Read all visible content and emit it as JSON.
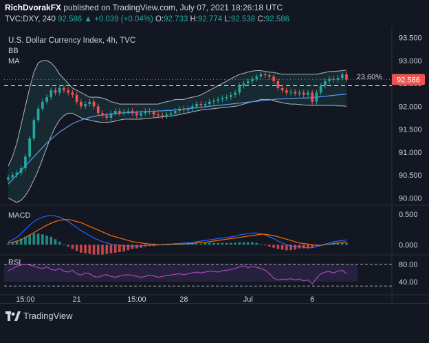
{
  "header": {
    "author": "RichDvorakFX",
    "published_text": "published on TradingView.com, July 07, 2021 18:26:18 UTC",
    "symbol": "TVC:DXY, 240",
    "last": "92.586",
    "change": "▲ +0.039 (+0.04%)",
    "ohlc": {
      "O": "92.733",
      "H": "92.774",
      "L": "92.538",
      "C": "92.586"
    }
  },
  "chart": {
    "title": "U.S. Dollar Currency Index, 4h, TVC",
    "bb_label": "BB",
    "ma_label": "MA",
    "macd_label": "MACD",
    "rsi_label": "RSI",
    "fib_label": "23.60%",
    "price_tag": "92.586",
    "colors": {
      "up": "#26a69a",
      "down": "#ef5350",
      "bb": "#b2b5be",
      "ma": "#5b9cf6",
      "macd": "#2962ff",
      "signal": "#ff6d00",
      "rsi": "#ab47bc"
    }
  },
  "chart_data": {
    "type": "candlestick",
    "x_ticks": [
      "15:00",
      "21",
      "15:00",
      "28",
      "Jul",
      "6"
    ],
    "price_ticks": [
      "93.500",
      "93.000",
      "92.500",
      "92.000",
      "91.500",
      "91.000",
      "90.500",
      "90.000"
    ],
    "macd_ticks": [
      "0.500",
      "0.000"
    ],
    "rsi_ticks": [
      "80.00",
      "40.00"
    ],
    "ylim": [
      89.9,
      93.6
    ],
    "fib_23_6_level": 92.45,
    "last_price": 92.586,
    "close": [
      90.45,
      90.5,
      90.55,
      90.65,
      90.9,
      91.3,
      91.7,
      91.95,
      92.1,
      92.2,
      92.35,
      92.3,
      92.4,
      92.35,
      92.3,
      92.25,
      92.1,
      92.0,
      92.05,
      92.1,
      92.0,
      91.85,
      91.8,
      91.75,
      91.85,
      91.9,
      91.85,
      91.88,
      91.9,
      91.85,
      91.8,
      91.85,
      91.9,
      91.88,
      91.82,
      91.8,
      91.78,
      91.82,
      91.85,
      91.9,
      91.95,
      91.92,
      91.95,
      92.0,
      92.05,
      92.02,
      92.05,
      92.1,
      92.12,
      92.15,
      92.18,
      92.2,
      92.25,
      92.3,
      92.45,
      92.5,
      92.55,
      92.6,
      92.65,
      92.7,
      92.68,
      92.65,
      92.55,
      92.4,
      92.35,
      92.3,
      92.32,
      92.28,
      92.3,
      92.25,
      92.3,
      92.1,
      92.3,
      92.45,
      92.55,
      92.6,
      92.58,
      92.62,
      92.7,
      92.586
    ],
    "bb_upper": [
      90.7,
      90.9,
      91.2,
      91.6,
      92.0,
      92.4,
      92.75,
      92.95,
      93.0,
      93.0,
      92.95,
      92.85,
      92.7,
      92.6,
      92.5,
      92.4,
      92.35,
      92.3,
      92.25,
      92.2,
      92.2,
      92.2,
      92.18,
      92.15,
      92.1,
      92.08,
      92.05,
      92.05,
      92.05,
      92.05,
      92.05,
      92.05,
      92.05,
      92.05,
      92.05,
      92.05,
      92.08,
      92.1,
      92.12,
      92.15,
      92.15,
      92.15,
      92.18,
      92.2,
      92.22,
      92.25,
      92.3,
      92.35,
      92.4,
      92.45,
      92.5,
      92.55,
      92.6,
      92.65,
      92.7,
      92.72,
      92.75,
      92.77,
      92.78,
      92.78,
      92.76,
      92.75,
      92.74,
      92.72,
      92.7,
      92.7,
      92.7,
      92.7,
      92.7,
      92.7,
      92.7,
      92.7,
      92.7,
      92.72,
      92.74,
      92.76,
      92.76,
      92.77,
      92.78,
      92.79
    ],
    "bb_lower": [
      90.0,
      89.95,
      89.9,
      89.95,
      90.05,
      90.2,
      90.4,
      90.6,
      90.85,
      91.1,
      91.35,
      91.55,
      91.7,
      91.8,
      91.85,
      91.85,
      91.8,
      91.75,
      91.72,
      91.7,
      91.68,
      91.66,
      91.65,
      91.65,
      91.66,
      91.68,
      91.7,
      91.72,
      91.72,
      91.72,
      91.72,
      91.72,
      91.73,
      91.74,
      91.75,
      91.76,
      91.77,
      91.78,
      91.79,
      91.8,
      91.82,
      91.84,
      91.86,
      91.88,
      91.9,
      91.92,
      91.93,
      91.94,
      91.95,
      91.96,
      91.97,
      91.98,
      91.99,
      92.0,
      92.02,
      92.05,
      92.08,
      92.1,
      92.12,
      92.15,
      92.15,
      92.15,
      92.12,
      92.1,
      92.08,
      92.06,
      92.05,
      92.05,
      92.04,
      92.03,
      92.02,
      92.02,
      92.02,
      92.02,
      92.02,
      92.02,
      92.02,
      92.01,
      92.01,
      92.0
    ],
    "ma": [
      90.3,
      90.4,
      90.5,
      90.6,
      90.7,
      90.8,
      90.9,
      91.0,
      91.1,
      91.2,
      91.28,
      91.36,
      91.44,
      91.5,
      91.56,
      91.62,
      91.66,
      91.7,
      91.73,
      91.76,
      91.78,
      91.8,
      91.81,
      91.82,
      91.83,
      91.84,
      91.85,
      91.86,
      91.86,
      91.87,
      91.87,
      91.88,
      91.88,
      91.89,
      91.89,
      91.9,
      91.9,
      91.91,
      91.91,
      91.92,
      91.93,
      91.94,
      91.95,
      91.96,
      91.97,
      91.98,
      91.99,
      92.0,
      92.01,
      92.02,
      92.03,
      92.04,
      92.05,
      92.06,
      92.07,
      92.08,
      92.09,
      92.1,
      92.11,
      92.12,
      92.13,
      92.14,
      92.15,
      92.16,
      92.16,
      92.17,
      92.17,
      92.17,
      92.18,
      92.18,
      92.18,
      92.19,
      92.2,
      92.21,
      92.22,
      92.23,
      92.24,
      92.25,
      92.26,
      92.27
    ],
    "macd": [
      0.05,
      0.08,
      0.12,
      0.18,
      0.25,
      0.32,
      0.38,
      0.42,
      0.45,
      0.47,
      0.48,
      0.47,
      0.45,
      0.42,
      0.38,
      0.33,
      0.28,
      0.23,
      0.19,
      0.15,
      0.11,
      0.08,
      0.05,
      0.03,
      0.01,
      0.0,
      -0.01,
      -0.02,
      -0.02,
      -0.02,
      -0.02,
      -0.02,
      -0.01,
      -0.01,
      -0.01,
      0.0,
      0.0,
      0.01,
      0.01,
      0.02,
      0.02,
      0.03,
      0.03,
      0.04,
      0.05,
      0.06,
      0.07,
      0.08,
      0.09,
      0.1,
      0.11,
      0.12,
      0.13,
      0.14,
      0.16,
      0.17,
      0.18,
      0.19,
      0.19,
      0.18,
      0.16,
      0.13,
      0.1,
      0.06,
      0.03,
      0.0,
      -0.02,
      -0.03,
      -0.03,
      -0.04,
      -0.05,
      -0.05,
      -0.03,
      -0.01,
      0.01,
      0.03,
      0.05,
      0.06,
      0.07,
      0.08
    ],
    "signal": [
      0.03,
      0.04,
      0.06,
      0.08,
      0.12,
      0.16,
      0.2,
      0.24,
      0.28,
      0.32,
      0.35,
      0.38,
      0.4,
      0.41,
      0.41,
      0.4,
      0.38,
      0.36,
      0.33,
      0.3,
      0.27,
      0.24,
      0.21,
      0.18,
      0.15,
      0.13,
      0.11,
      0.09,
      0.07,
      0.05,
      0.04,
      0.03,
      0.02,
      0.01,
      0.01,
      0.0,
      0.0,
      0.0,
      0.0,
      0.01,
      0.01,
      0.01,
      0.02,
      0.02,
      0.03,
      0.04,
      0.04,
      0.05,
      0.06,
      0.07,
      0.08,
      0.09,
      0.1,
      0.11,
      0.12,
      0.13,
      0.14,
      0.15,
      0.16,
      0.17,
      0.17,
      0.16,
      0.15,
      0.13,
      0.11,
      0.09,
      0.07,
      0.05,
      0.03,
      0.02,
      0.01,
      0.0,
      -0.01,
      -0.01,
      0.0,
      0.01,
      0.02,
      0.03,
      0.04,
      0.05
    ],
    "rsi": [
      65,
      70,
      75,
      78,
      80,
      78,
      76,
      72,
      70,
      74,
      68,
      66,
      70,
      64,
      62,
      66,
      58,
      55,
      60,
      58,
      52,
      50,
      54,
      56,
      52,
      50,
      53,
      55,
      56,
      54,
      52,
      50,
      52,
      55,
      53,
      50,
      52,
      54,
      55,
      57,
      58,
      56,
      58,
      60,
      62,
      60,
      62,
      64,
      63,
      62,
      65,
      66,
      68,
      70,
      74,
      76,
      72,
      75,
      73,
      70,
      66,
      58,
      48,
      44,
      46,
      45,
      47,
      44,
      46,
      42,
      44,
      35,
      48,
      58,
      62,
      63,
      60,
      64,
      66,
      58
    ]
  }
}
